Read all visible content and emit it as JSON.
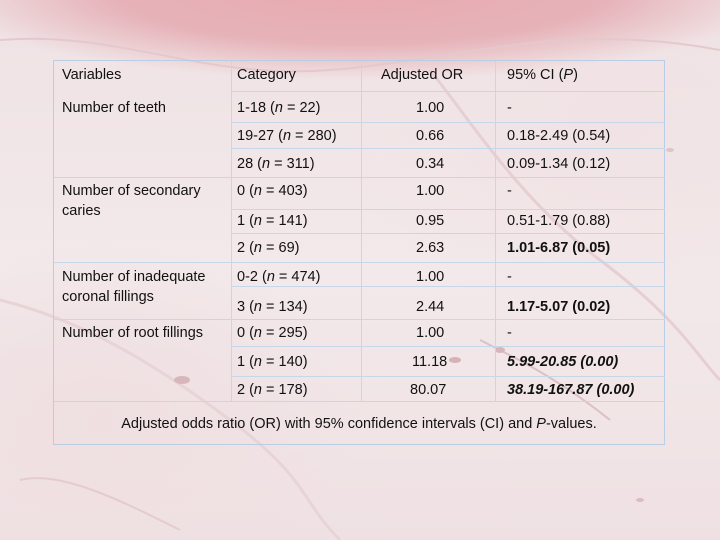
{
  "headers": {
    "variables": "Variables",
    "category": "Category",
    "adjusted_or": "Adjusted OR",
    "ci_prefix": "95% CI (",
    "ci_italic": "P",
    "ci_suffix": ")"
  },
  "rows": [
    {
      "variable": "Number of teeth",
      "category_pre": "1-18 (",
      "n_letter": "n",
      "category_post": " = 22)",
      "or": "1.00",
      "ci": "-"
    },
    {
      "variable": "",
      "category_pre": "19-27 (",
      "n_letter": "n",
      "category_post": " = 280)",
      "or": "0.66",
      "ci": "0.18-2.49 (0.54)"
    },
    {
      "variable": "",
      "category_pre": "28 (",
      "n_letter": "n",
      "category_post": " = 311)",
      "or": "0.34",
      "ci": "0.09-1.34 (0.12)"
    },
    {
      "variable_line1": "Number of secondary",
      "variable_line2": "caries",
      "category_pre": "0 (",
      "n_letter": "n",
      "category_post": " = 403)",
      "or": "1.00",
      "ci": "-"
    },
    {
      "variable": "",
      "category_pre": "1 (",
      "n_letter": "n",
      "category_post": " = 141)",
      "or": "0.95",
      "ci": "0.51-1.79 (0.88)"
    },
    {
      "variable": "",
      "category_pre": " 2 (",
      "n_letter": "n",
      "category_post": " = 69)",
      "or": "2.63",
      "ci": "1.01-6.87 (0.05)"
    },
    {
      "variable_line1": "Number of inadequate",
      "variable_line2": "coronal fillings",
      "category_pre": "0-2 (",
      "n_letter": "n",
      "category_post": " = 474)",
      "or": "1.00",
      "ci": "-"
    },
    {
      "variable": "",
      "category_pre": "3 (",
      "n_letter": "n",
      "category_post": " = 134)",
      "or": "2.44",
      "ci": "1.17-5.07 (0.02)"
    },
    {
      "variable": "Number of root fillings",
      "category_pre": "0 (",
      "n_letter": "n",
      "category_post": " = 295)",
      "or": "1.00",
      "ci": "-"
    },
    {
      "variable": "",
      "category_pre": "1 (",
      "n_letter": "n",
      "category_post": " = 140)",
      "or": "11.18",
      "ci": "5.99-20.85 (0.00)"
    },
    {
      "variable": "",
      "category_pre": "2 (",
      "n_letter": "n",
      "category_post": " = 178)",
      "or": "80.07",
      "ci": "38.19-167.87 (0.00)"
    }
  ],
  "caption": {
    "pre": "Adjusted odds ratio (OR) with 95% confidence intervals (CI) and ",
    "italic": "P",
    "post": "-values."
  }
}
